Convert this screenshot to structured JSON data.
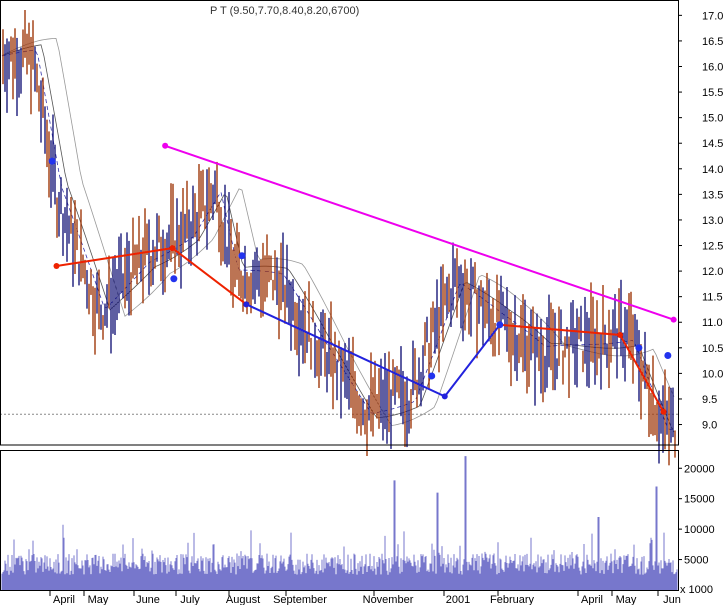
{
  "header_text": "P T (9.50,7.70,8.40,8.20,6700)",
  "chart_data": [
    {
      "type": "candlestick",
      "y_axis_side": "right",
      "ylim": [
        8.6,
        17.3
      ],
      "y_ticks": [
        "9.0",
        "9.5",
        "10.0",
        "10.5",
        "11.0",
        "11.5",
        "12.0",
        "12.5",
        "13.0",
        "13.5",
        "14.0",
        "14.5",
        "15.0",
        "15.5",
        "16.0",
        "16.5",
        "17.0"
      ],
      "reference_line": 9.2,
      "series": [
        {
          "name": "",
          "x": [
            "2000-03-15",
            "2000-04-01",
            "2000-05-01",
            "2000-06-01",
            "2000-07-01",
            "2000-07-20",
            "2000-08-01",
            "2000-09-01",
            "2000-10-01",
            "2000-11-01",
            "2000-12-01",
            "2001-01-01",
            "2001-02-01",
            "2001-03-01",
            "2001-04-01",
            "2001-05-01",
            "2001-05-25"
          ],
          "close": [
            16.2,
            13.5,
            11.2,
            12.3,
            12.8,
            13.6,
            12.0,
            11.8,
            10.5,
            9.3,
            9.6,
            11.8,
            11.0,
            10.4,
            10.6,
            10.8,
            9.0
          ]
        }
      ],
      "trendlines": [
        {
          "color": "#ee00ee",
          "points": [
            [
              "2000-06-15",
              14.45
            ],
            [
              "2001-06-01",
              11.05
            ]
          ]
        },
        {
          "color": "#ee2200",
          "points": [
            [
              "2000-04-01",
              12.1
            ],
            [
              "2000-06-20",
              12.45
            ],
            [
              "2000-08-10",
              11.35
            ]
          ]
        },
        {
          "color": "#2222dd",
          "points": [
            [
              "2000-08-10",
              11.35
            ],
            [
              "2000-12-25",
              9.55
            ],
            [
              "2001-02-01",
              10.95
            ]
          ]
        },
        {
          "color": "#ee2200",
          "points": [
            [
              "2001-02-01",
              10.95
            ],
            [
              "2001-04-25",
              10.75
            ],
            [
              "2001-05-25",
              9.25
            ]
          ]
        }
      ],
      "pivot_points": [
        {
          "x": "2000-03-29",
          "y": 14.15
        },
        {
          "x": "2000-06-21",
          "y": 11.85
        },
        {
          "x": "2000-08-07",
          "y": 12.3
        },
        {
          "x": "2000-12-16",
          "y": 9.95
        },
        {
          "x": "2001-02-01",
          "y": 10.95
        },
        {
          "x": "2001-05-08",
          "y": 10.5
        },
        {
          "x": "2001-05-28",
          "y": 10.35
        }
      ]
    },
    {
      "type": "bar",
      "ylim": [
        0,
        23000
      ],
      "y_ticks": [
        "5000",
        "10000",
        "15000",
        "20000"
      ],
      "unit_label": "x 1000",
      "description_color": "#7777cc",
      "peaks": [
        {
          "x": "2000-11-20",
          "value": 18000
        },
        {
          "x": "2000-12-20",
          "value": 16000
        },
        {
          "x": "2001-01-08",
          "value": 22000
        },
        {
          "x": "2001-04-10",
          "value": 12000
        },
        {
          "x": "2001-05-20",
          "value": 17000
        }
      ]
    }
  ],
  "x_ticks": [
    "April",
    "May",
    "June",
    "July",
    "August",
    "September",
    "November",
    "2001",
    "February",
    "April",
    "May",
    "Jun"
  ]
}
